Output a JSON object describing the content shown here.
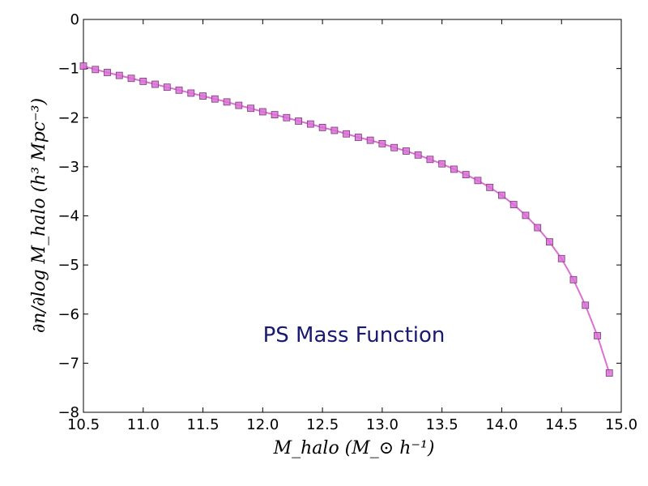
{
  "chart_data": {
    "type": "line",
    "title": "",
    "annotation": "PS Mass Function",
    "xlabel": "M_halo (M_⊙ h⁻¹)",
    "ylabel": "∂n/∂log M_halo (h³ Mpc⁻³)",
    "xlim": [
      10.5,
      15.0
    ],
    "ylim": [
      -8,
      0
    ],
    "xticks": [
      "10.5",
      "11.0",
      "11.5",
      "12.0",
      "12.5",
      "13.0",
      "13.5",
      "14.0",
      "14.5",
      "15.0"
    ],
    "yticks": [
      "0",
      "−1",
      "−2",
      "−3",
      "−4",
      "−5",
      "−6",
      "−7",
      "−8"
    ],
    "grid": false,
    "series": [
      {
        "color": "#da70d6",
        "marker": "square",
        "x": [
          10.5,
          10.6,
          10.7,
          10.8,
          10.9,
          11.0,
          11.1,
          11.2,
          11.3,
          11.4,
          11.5,
          11.6,
          11.7,
          11.8,
          11.9,
          12.0,
          12.1,
          12.2,
          12.3,
          12.4,
          12.5,
          12.6,
          12.7,
          12.8,
          12.9,
          13.0,
          13.1,
          13.2,
          13.3,
          13.4,
          13.5,
          13.6,
          13.7,
          13.8,
          13.9,
          14.0,
          14.1,
          14.2,
          14.3,
          14.4,
          14.5,
          14.6,
          14.7,
          14.8,
          14.9
        ],
        "y": [
          -0.95,
          -1.02,
          -1.08,
          -1.14,
          -1.2,
          -1.26,
          -1.32,
          -1.38,
          -1.44,
          -1.5,
          -1.56,
          -1.62,
          -1.68,
          -1.75,
          -1.81,
          -1.88,
          -1.94,
          -2.0,
          -2.07,
          -2.13,
          -2.2,
          -2.26,
          -2.33,
          -2.4,
          -2.46,
          -2.53,
          -2.61,
          -2.68,
          -2.76,
          -2.85,
          -2.94,
          -3.05,
          -3.16,
          -3.28,
          -3.42,
          -3.58,
          -3.77,
          -3.99,
          -4.24,
          -4.53,
          -4.87,
          -5.3,
          -5.82,
          -6.44,
          -7.2
        ]
      }
    ]
  }
}
